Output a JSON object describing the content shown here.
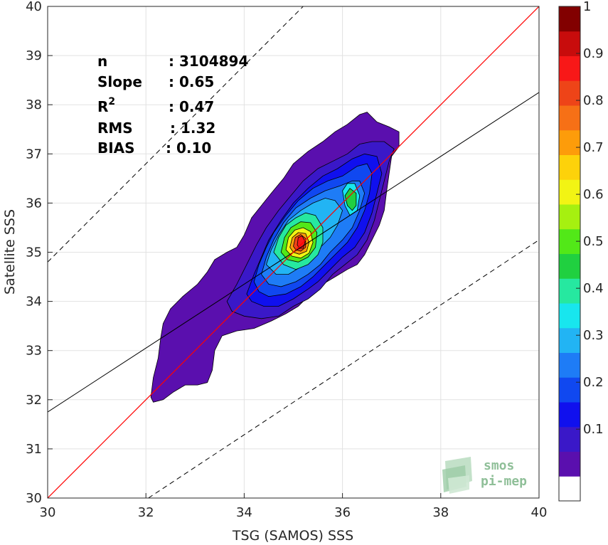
{
  "chart_data": {
    "type": "contour-density-scatter",
    "xlabel": "TSG (SAMOS) SSS",
    "ylabel": "Satellite SSS",
    "xlim": [
      30,
      40
    ],
    "ylim": [
      30,
      40
    ],
    "x_ticks": [
      30,
      32,
      34,
      36,
      38,
      40
    ],
    "y_ticks": [
      30,
      31,
      32,
      33,
      34,
      35,
      36,
      37,
      38,
      39,
      40
    ],
    "grid": true,
    "stats": [
      {
        "label": "n",
        "value": ": 3104894"
      },
      {
        "label": "Slope",
        "value": ": 0.65"
      },
      {
        "label": "R",
        "sup": "2",
        "value": ": 0.47"
      },
      {
        "label": "RMS",
        "value": ": 1.32"
      },
      {
        "label": "BIAS",
        "value": ": 0.10"
      }
    ],
    "lines": {
      "identity": {
        "x": [
          30,
          40
        ],
        "y": [
          30,
          40
        ],
        "color": "#ff0000"
      },
      "regression": {
        "slope": 0.65,
        "x": [
          30,
          40
        ],
        "y": [
          31.75,
          38.25
        ],
        "color": "#000000"
      },
      "upper_bound": {
        "x": [
          30,
          40
        ],
        "y": [
          34.8,
          44.8
        ],
        "style": "dashed"
      },
      "lower_bound": {
        "x": [
          32.05,
          40
        ],
        "y": [
          30,
          35.25
        ],
        "style": "dashed"
      }
    },
    "colorbar": {
      "ticks": [
        "0.1",
        "0.2",
        "0.3",
        "0.4",
        "0.5",
        "0.6",
        "0.7",
        "0.8",
        "0.9",
        "1"
      ],
      "colors": [
        "#ffffff",
        "#5a0fae",
        "#3a18c8",
        "#1010ee",
        "#1048f0",
        "#1e7cf6",
        "#22b4f4",
        "#18e6ee",
        "#26e8a0",
        "#20d040",
        "#52e818",
        "#a6f010",
        "#f2f414",
        "#fdd20a",
        "#fd9c0a",
        "#f67016",
        "#ee4418",
        "#f81818",
        "#c80c0c",
        "#820000"
      ]
    },
    "contours": [
      {
        "level": 1,
        "points": [
          [
            32.1,
            32.05
          ],
          [
            32.15,
            32.45
          ],
          [
            32.25,
            32.85
          ],
          [
            32.3,
            33.25
          ],
          [
            32.35,
            33.55
          ],
          [
            32.5,
            33.85
          ],
          [
            32.75,
            34.1
          ],
          [
            33.05,
            34.35
          ],
          [
            33.25,
            34.6
          ],
          [
            33.4,
            34.85
          ],
          [
            33.65,
            35.0
          ],
          [
            33.85,
            35.1
          ],
          [
            34.0,
            35.35
          ],
          [
            34.15,
            35.7
          ],
          [
            34.35,
            35.95
          ],
          [
            34.55,
            36.2
          ],
          [
            34.8,
            36.5
          ],
          [
            35.0,
            36.8
          ],
          [
            35.3,
            37.05
          ],
          [
            35.6,
            37.25
          ],
          [
            35.85,
            37.45
          ],
          [
            36.1,
            37.6
          ],
          [
            36.35,
            37.8
          ],
          [
            36.5,
            37.85
          ],
          [
            36.7,
            37.65
          ],
          [
            36.95,
            37.55
          ],
          [
            37.15,
            37.45
          ],
          [
            37.15,
            37.15
          ],
          [
            37.0,
            36.95
          ],
          [
            36.95,
            36.6
          ],
          [
            36.9,
            36.25
          ],
          [
            36.85,
            35.85
          ],
          [
            36.75,
            35.55
          ],
          [
            36.6,
            35.25
          ],
          [
            36.45,
            34.95
          ],
          [
            36.3,
            34.75
          ],
          [
            36.1,
            34.65
          ],
          [
            35.85,
            34.5
          ],
          [
            35.6,
            34.35
          ],
          [
            35.35,
            34.15
          ],
          [
            35.1,
            33.9
          ],
          [
            34.85,
            33.75
          ],
          [
            34.55,
            33.6
          ],
          [
            34.2,
            33.45
          ],
          [
            33.85,
            33.4
          ],
          [
            33.55,
            33.3
          ],
          [
            33.4,
            33.0
          ],
          [
            33.35,
            32.6
          ],
          [
            33.25,
            32.35
          ],
          [
            33.05,
            32.3
          ],
          [
            32.8,
            32.3
          ],
          [
            32.55,
            32.15
          ],
          [
            32.35,
            32.0
          ],
          [
            32.15,
            31.95
          ]
        ]
      },
      {
        "level": 2,
        "points": [
          [
            33.65,
            34.0
          ],
          [
            33.85,
            34.35
          ],
          [
            34.05,
            34.75
          ],
          [
            34.25,
            35.15
          ],
          [
            34.45,
            35.5
          ],
          [
            34.7,
            35.85
          ],
          [
            34.95,
            36.15
          ],
          [
            35.2,
            36.45
          ],
          [
            35.5,
            36.7
          ],
          [
            35.8,
            36.85
          ],
          [
            36.1,
            37.0
          ],
          [
            36.35,
            37.2
          ],
          [
            36.6,
            37.25
          ],
          [
            36.85,
            37.25
          ],
          [
            37.05,
            37.1
          ],
          [
            36.95,
            36.85
          ],
          [
            36.85,
            36.45
          ],
          [
            36.75,
            36.05
          ],
          [
            36.65,
            35.65
          ],
          [
            36.5,
            35.25
          ],
          [
            36.3,
            34.95
          ],
          [
            36.05,
            34.75
          ],
          [
            35.8,
            34.55
          ],
          [
            35.55,
            34.25
          ],
          [
            35.3,
            34.05
          ],
          [
            35.0,
            33.9
          ],
          [
            34.7,
            33.7
          ],
          [
            34.35,
            33.65
          ],
          [
            34.0,
            33.7
          ],
          [
            33.75,
            33.8
          ]
        ]
      },
      {
        "level": 3,
        "points": [
          [
            34.05,
            34.15
          ],
          [
            34.2,
            34.55
          ],
          [
            34.35,
            34.9
          ],
          [
            34.5,
            35.25
          ],
          [
            34.75,
            35.65
          ],
          [
            35.0,
            36.0
          ],
          [
            35.3,
            36.3
          ],
          [
            35.6,
            36.55
          ],
          [
            35.9,
            36.7
          ],
          [
            36.2,
            36.9
          ],
          [
            36.45,
            37.0
          ],
          [
            36.7,
            36.95
          ],
          [
            36.8,
            36.6
          ],
          [
            36.7,
            36.2
          ],
          [
            36.6,
            35.8
          ],
          [
            36.45,
            35.4
          ],
          [
            36.25,
            35.1
          ],
          [
            36.0,
            34.9
          ],
          [
            35.75,
            34.65
          ],
          [
            35.5,
            34.4
          ],
          [
            35.3,
            34.25
          ],
          [
            35.0,
            34.05
          ],
          [
            34.7,
            33.9
          ],
          [
            34.4,
            33.9
          ],
          [
            34.15,
            34.0
          ]
        ]
      },
      {
        "level": 4,
        "points": [
          [
            34.2,
            34.4
          ],
          [
            34.3,
            34.75
          ],
          [
            34.45,
            35.1
          ],
          [
            34.6,
            35.4
          ],
          [
            34.85,
            35.75
          ],
          [
            35.1,
            36.05
          ],
          [
            35.4,
            36.3
          ],
          [
            35.7,
            36.45
          ],
          [
            36.0,
            36.55
          ],
          [
            36.3,
            36.75
          ],
          [
            36.5,
            36.8
          ],
          [
            36.6,
            36.6
          ],
          [
            36.55,
            36.2
          ],
          [
            36.45,
            35.85
          ],
          [
            36.3,
            35.5
          ],
          [
            36.1,
            35.2
          ],
          [
            35.85,
            34.95
          ],
          [
            35.6,
            34.7
          ],
          [
            35.4,
            34.5
          ],
          [
            35.15,
            34.3
          ],
          [
            34.85,
            34.15
          ],
          [
            34.5,
            34.1
          ],
          [
            34.3,
            34.2
          ]
        ]
      },
      {
        "level": 5,
        "points": [
          [
            34.35,
            34.55
          ],
          [
            34.45,
            34.9
          ],
          [
            34.6,
            35.25
          ],
          [
            34.8,
            35.6
          ],
          [
            35.05,
            35.9
          ],
          [
            35.35,
            36.1
          ],
          [
            35.65,
            36.25
          ],
          [
            35.95,
            36.35
          ],
          [
            36.2,
            36.45
          ],
          [
            36.35,
            36.45
          ],
          [
            36.45,
            36.2
          ],
          [
            36.35,
            35.85
          ],
          [
            36.2,
            35.5
          ],
          [
            36.0,
            35.25
          ],
          [
            35.75,
            35.0
          ],
          [
            35.55,
            34.75
          ],
          [
            35.3,
            34.55
          ],
          [
            35.05,
            34.4
          ],
          [
            34.75,
            34.3
          ],
          [
            34.5,
            34.35
          ]
        ]
      },
      {
        "level": 6,
        "points": [
          [
            34.45,
            34.75
          ],
          [
            34.55,
            35.05
          ],
          [
            34.7,
            35.35
          ],
          [
            34.9,
            35.65
          ],
          [
            35.15,
            35.85
          ],
          [
            35.4,
            36.0
          ],
          [
            35.65,
            36.1
          ],
          [
            35.85,
            36.05
          ],
          [
            36.0,
            35.85
          ],
          [
            35.9,
            35.55
          ],
          [
            35.75,
            35.3
          ],
          [
            35.55,
            35.1
          ],
          [
            35.35,
            34.9
          ],
          [
            35.15,
            34.7
          ],
          [
            34.9,
            34.55
          ],
          [
            34.65,
            34.55
          ]
        ]
      },
      {
        "level": 7,
        "points": [
          [
            36.0,
            36.25
          ],
          [
            36.05,
            35.95
          ],
          [
            36.15,
            35.75
          ],
          [
            36.3,
            35.85
          ],
          [
            36.35,
            36.15
          ],
          [
            36.25,
            36.4
          ],
          [
            36.1,
            36.4
          ]
        ]
      },
      {
        "level": 8,
        "points": [
          [
            34.6,
            35.0
          ],
          [
            34.7,
            35.3
          ],
          [
            34.85,
            35.55
          ],
          [
            35.05,
            35.7
          ],
          [
            35.25,
            35.8
          ],
          [
            35.45,
            35.75
          ],
          [
            35.6,
            35.5
          ],
          [
            35.6,
            35.2
          ],
          [
            35.5,
            34.95
          ],
          [
            35.3,
            34.75
          ],
          [
            35.05,
            34.65
          ],
          [
            34.8,
            34.75
          ]
        ]
      },
      {
        "level": 9,
        "points": [
          [
            36.05,
            36.15
          ],
          [
            36.1,
            35.95
          ],
          [
            36.2,
            35.85
          ],
          [
            36.28,
            35.95
          ],
          [
            36.28,
            36.2
          ],
          [
            36.15,
            36.3
          ]
        ]
      },
      {
        "level": 10,
        "points": [
          [
            34.75,
            35.0
          ],
          [
            34.82,
            35.3
          ],
          [
            34.95,
            35.5
          ],
          [
            35.15,
            35.62
          ],
          [
            35.35,
            35.6
          ],
          [
            35.48,
            35.4
          ],
          [
            35.45,
            35.1
          ],
          [
            35.3,
            34.9
          ],
          [
            35.1,
            34.8
          ],
          [
            34.88,
            34.85
          ]
        ]
      },
      {
        "level": 12,
        "points": [
          [
            34.85,
            35.05
          ],
          [
            34.9,
            35.3
          ],
          [
            35.03,
            35.45
          ],
          [
            35.2,
            35.5
          ],
          [
            35.35,
            35.42
          ],
          [
            35.4,
            35.2
          ],
          [
            35.32,
            34.98
          ],
          [
            35.15,
            34.88
          ],
          [
            34.97,
            34.92
          ]
        ]
      },
      {
        "level": 14,
        "points": [
          [
            34.93,
            35.1
          ],
          [
            34.98,
            35.3
          ],
          [
            35.1,
            35.4
          ],
          [
            35.25,
            35.38
          ],
          [
            35.32,
            35.2
          ],
          [
            35.27,
            35.02
          ],
          [
            35.12,
            34.96
          ],
          [
            35.0,
            35.0
          ]
        ]
      },
      {
        "level": 16,
        "points": [
          [
            35.0,
            35.12
          ],
          [
            35.04,
            35.3
          ],
          [
            35.15,
            35.36
          ],
          [
            35.25,
            35.28
          ],
          [
            35.25,
            35.1
          ],
          [
            35.15,
            35.02
          ],
          [
            35.05,
            35.05
          ]
        ]
      },
      {
        "level": 17,
        "points": [
          [
            35.08,
            35.15
          ],
          [
            35.1,
            35.3
          ],
          [
            35.18,
            35.33
          ],
          [
            35.24,
            35.22
          ],
          [
            35.2,
            35.08
          ],
          [
            35.12,
            35.08
          ]
        ]
      }
    ]
  }
}
